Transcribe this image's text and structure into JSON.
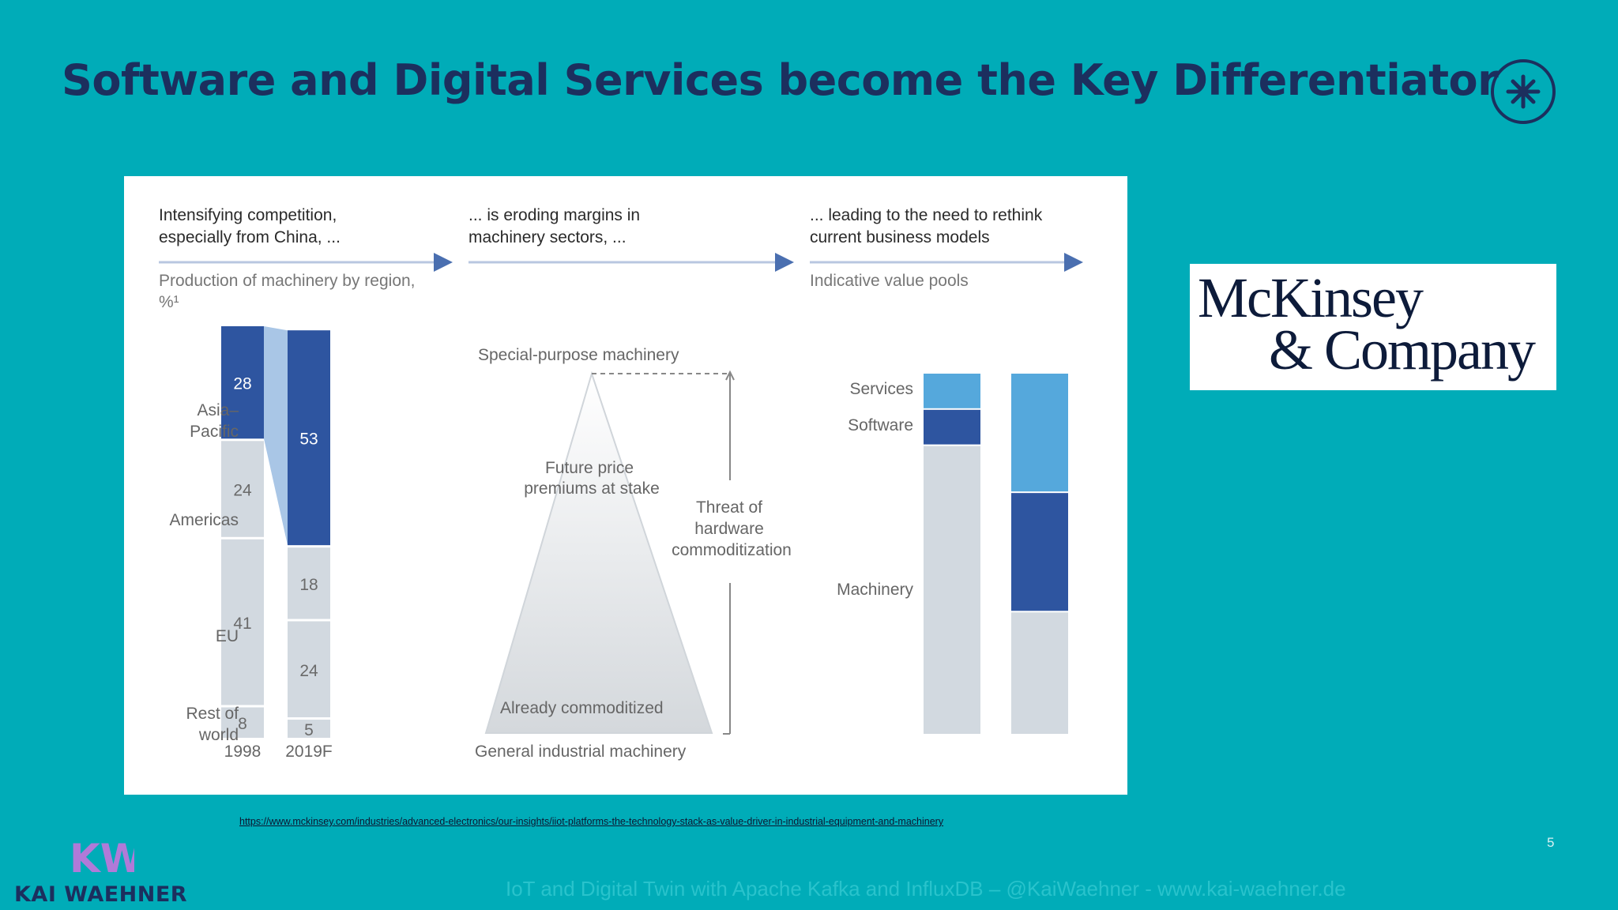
{
  "slide": {
    "title": "Software and Digital Services become the Key Differentiator",
    "page_number": "5",
    "source_link": "https://www.mckinsey.com/industries/advanced-electronics/our-insights/iiot-platforms-the-technology-stack-as-value-driver-in-industrial-equipment-and-machinery",
    "footer": "IoT and Digital Twin with Apache Kafka and InfluxDB – @KaiWaehner - www.kai-waehner.de",
    "brand_name": "KAI WAEHNER",
    "brand_initials": "KW",
    "mckinsey_line1": "McKinsey",
    "mckinsey_line2": "& Company",
    "colors": {
      "background": "#00acb8",
      "title": "#1c2f5e",
      "dark_blue": "#2e55a0",
      "light_blue": "#55a8dc",
      "grey": "#d2d9e0"
    }
  },
  "figure": {
    "panel1": {
      "heading_line1": "Intensifying competition,",
      "heading_line2": "especially from China, ...",
      "sub_line1": "Production of machinery by region,",
      "sub_line2": "%¹"
    },
    "panel2": {
      "heading_line1": "... is eroding margins in",
      "heading_line2": "machinery sectors, ...",
      "top_label": "Special-purpose machinery",
      "premium_line1": "Future price",
      "premium_line2": "premiums at stake",
      "threat_line1": "Threat of",
      "threat_line2": "hardware",
      "threat_line3": "commoditization",
      "commoditized": "Already commoditized",
      "bottom_label": "General industrial machinery"
    },
    "panel3": {
      "heading_line1": "... leading to the need to rethink",
      "heading_line2": "current business models",
      "sub": "Indicative value pools",
      "labels": [
        "Services",
        "Software",
        "Machinery"
      ]
    }
  },
  "chart_data": [
    {
      "type": "bar",
      "stacked": true,
      "categories": [
        "1998",
        "2019F"
      ],
      "series": [
        {
          "name": "Rest of world",
          "values": [
            8,
            5
          ]
        },
        {
          "name": "EU",
          "values": [
            41,
            24
          ]
        },
        {
          "name": "",
          "values": [
            0,
            18
          ]
        },
        {
          "name": "Americas",
          "values": [
            24,
            0
          ]
        },
        {
          "name": "Asia–Pacific",
          "values": [
            28,
            53
          ]
        }
      ],
      "region_labels": [
        {
          "line1": "Asia–",
          "line2": "Pacific"
        },
        {
          "line1": "Americas",
          "line2": ""
        },
        {
          "line1": "EU",
          "line2": ""
        },
        {
          "line1": "Rest of",
          "line2": "world"
        }
      ],
      "ylim": [
        0,
        101
      ]
    },
    {
      "type": "bar",
      "stacked": true,
      "categories": [
        "",
        ""
      ],
      "series": [
        {
          "name": "Machinery",
          "values": [
            80,
            34
          ]
        },
        {
          "name": "Software",
          "values": [
            10,
            33
          ]
        },
        {
          "name": "Services",
          "values": [
            10,
            33
          ]
        }
      ],
      "ylim": [
        0,
        100
      ]
    }
  ]
}
